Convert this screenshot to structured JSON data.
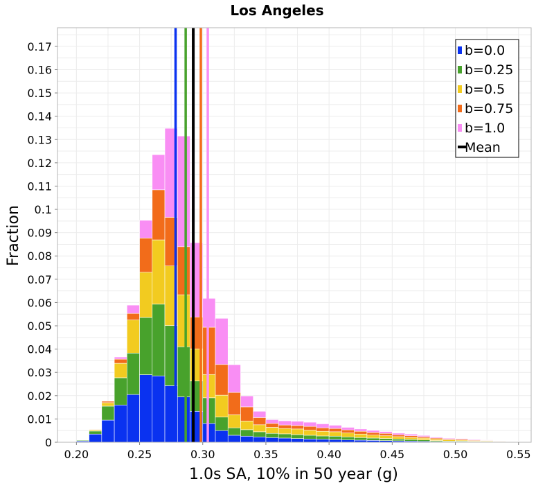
{
  "chart_data": {
    "type": "bar",
    "stacked": true,
    "title": "Los Angeles",
    "xlabel": "1.0s SA, 10% in 50 year (g)",
    "ylabel": "Fraction",
    "xlim": [
      0.185,
      0.56
    ],
    "ylim": [
      0,
      0.178
    ],
    "xticks": [
      0.2,
      0.25,
      0.3,
      0.35,
      0.4,
      0.45,
      0.5,
      0.55
    ],
    "xtick_labels": [
      "0.20",
      "0.25",
      "0.30",
      "0.35",
      "0.40",
      "0.45",
      "0.50",
      "0.55"
    ],
    "yticks": [
      0,
      0.01,
      0.02,
      0.03,
      0.04,
      0.05,
      0.06,
      0.07,
      0.08,
      0.09,
      0.1,
      0.11,
      0.12,
      0.13,
      0.14,
      0.15,
      0.16,
      0.17
    ],
    "ytick_labels": [
      "0",
      "0.01",
      "0.02",
      "0.03",
      "0.04",
      "0.05",
      "0.06",
      "0.07",
      "0.08",
      "0.09",
      "0.1",
      "0.11",
      "0.12",
      "0.13",
      "0.14",
      "0.15",
      "0.16",
      "0.17"
    ],
    "grid": true,
    "legend_position": "top-right",
    "bin_width": 0.01,
    "bin_starts": [
      0.19,
      0.2,
      0.21,
      0.22,
      0.23,
      0.24,
      0.25,
      0.26,
      0.27,
      0.28,
      0.29,
      0.3,
      0.31,
      0.32,
      0.33,
      0.34,
      0.35,
      0.36,
      0.37,
      0.38,
      0.39,
      0.4,
      0.41,
      0.42,
      0.43,
      0.44,
      0.45,
      0.46,
      0.47,
      0.48,
      0.49,
      0.5,
      0.51,
      0.52,
      0.53,
      0.54,
      0.55
    ],
    "series": [
      {
        "name": "b=0.0",
        "color": "#0a32f0",
        "values": [
          0,
          0.0005,
          0.0035,
          0.0095,
          0.016,
          0.0205,
          0.029,
          0.0285,
          0.0243,
          0.0195,
          0.0133,
          0.0081,
          0.005,
          0.003,
          0.0026,
          0.0023,
          0.002,
          0.0018,
          0.0016,
          0.0014,
          0.0013,
          0.0012,
          0.001,
          0.0009,
          0.0008,
          0.0007,
          0.0006,
          0.0005,
          0.0004,
          0.0003,
          0.0002,
          0.0002,
          0.0001,
          0.0001,
          0.0001,
          0,
          0
        ]
      },
      {
        "name": "b=0.25",
        "color": "#48a22c",
        "values": [
          0,
          0.0003,
          0.0013,
          0.006,
          0.0117,
          0.0178,
          0.0246,
          0.0308,
          0.0258,
          0.0215,
          0.013,
          0.011,
          0.0058,
          0.0032,
          0.0028,
          0.0022,
          0.0018,
          0.0018,
          0.0017,
          0.0016,
          0.0014,
          0.0014,
          0.0013,
          0.0011,
          0.001,
          0.0009,
          0.0008,
          0.0007,
          0.0006,
          0.0004,
          0.0003,
          0.0003,
          0.0002,
          0.0002,
          0.0001,
          0.0001,
          0
        ]
      },
      {
        "name": "b=0.5",
        "color": "#f2cb20",
        "values": [
          0,
          0,
          0.0005,
          0.0015,
          0.0062,
          0.0142,
          0.0194,
          0.0276,
          0.0256,
          0.0223,
          0.0138,
          0.01,
          0.0094,
          0.0056,
          0.0037,
          0.003,
          0.0026,
          0.0023,
          0.0024,
          0.0022,
          0.002,
          0.0019,
          0.0017,
          0.0015,
          0.0013,
          0.0012,
          0.001,
          0.0009,
          0.0008,
          0.0006,
          0.0005,
          0.0004,
          0.0003,
          0.0003,
          0.0002,
          0.0001,
          0
        ]
      },
      {
        "name": "b=0.75",
        "color": "#f26c1a",
        "values": [
          0,
          0,
          0.0002,
          0.0006,
          0.0018,
          0.0028,
          0.0147,
          0.0215,
          0.0209,
          0.0207,
          0.0137,
          0.0203,
          0.0132,
          0.0096,
          0.0061,
          0.0031,
          0.0017,
          0.0015,
          0.0015,
          0.0016,
          0.0015,
          0.0014,
          0.0013,
          0.0012,
          0.0011,
          0.001,
          0.0008,
          0.0007,
          0.0006,
          0.0005,
          0.0004,
          0.0004,
          0.0003,
          0.0002,
          0.0002,
          0.0001,
          0
        ]
      },
      {
        "name": "b=1.0",
        "color": "#f98ef4",
        "values": [
          0,
          0,
          0,
          0,
          0.0009,
          0.0036,
          0.0076,
          0.0151,
          0.0382,
          0.0475,
          0.0319,
          0.0124,
          0.0198,
          0.0119,
          0.0047,
          0.0027,
          0.0016,
          0.0018,
          0.0018,
          0.0018,
          0.0017,
          0.0014,
          0.0011,
          0.001,
          0.0009,
          0.0008,
          0.0007,
          0.0007,
          0.0005,
          0.0004,
          0.0003,
          0.0003,
          0.0003,
          0.0002,
          0.0001,
          0.0001,
          0
        ]
      }
    ],
    "mean_lines": [
      {
        "series": "b=0.0",
        "x": 0.2785,
        "color": "#0a32f0"
      },
      {
        "series": "b=0.25",
        "x": 0.2865,
        "color": "#48a22c"
      },
      {
        "series": "b=0.5",
        "x": 0.2925,
        "color": "#f2cb20"
      },
      {
        "series": "b=0.75",
        "x": 0.2985,
        "color": "#f26c1a"
      },
      {
        "series": "b=1.0",
        "x": 0.304,
        "color": "#f98ef4"
      },
      {
        "series": "Mean",
        "x": 0.2925,
        "color": "#000000"
      }
    ],
    "legend": [
      {
        "label": "b=0.0",
        "color": "#0a32f0",
        "kind": "box"
      },
      {
        "label": "b=0.25",
        "color": "#48a22c",
        "kind": "box"
      },
      {
        "label": "b=0.5",
        "color": "#f2cb20",
        "kind": "box"
      },
      {
        "label": "b=0.75",
        "color": "#f26c1a",
        "kind": "box"
      },
      {
        "label": "b=1.0",
        "color": "#f98ef4",
        "kind": "box"
      },
      {
        "label": "Mean",
        "color": "#000000",
        "kind": "line"
      }
    ]
  }
}
